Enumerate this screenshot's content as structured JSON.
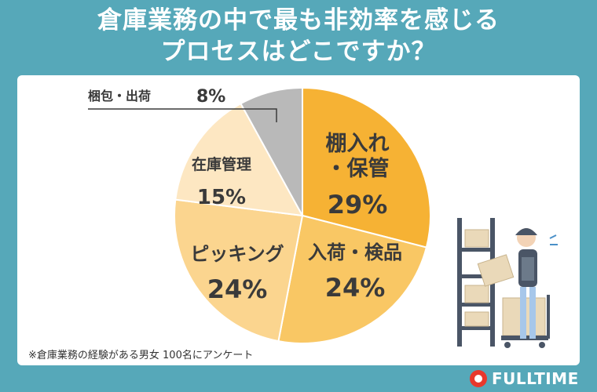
{
  "title_line1": "倉庫業務の中で最も非効率を感じる",
  "title_line2": "プロセスはどこですか？",
  "footnote": "※倉庫業務の経験がある男女 100名にアンケート",
  "logo": "FULLTIME",
  "chart_data": {
    "type": "pie",
    "slices": [
      {
        "label": "棚入れ・保管",
        "value": 29,
        "color": "#f6b234"
      },
      {
        "label": "入荷・検品",
        "value": 24,
        "color": "#f9c764"
      },
      {
        "label": "ピッキング",
        "value": 24,
        "color": "#fbd58f"
      },
      {
        "label": "在庫管理",
        "value": 15,
        "color": "#fde7c2"
      },
      {
        "label": "梱包・出荷",
        "value": 8,
        "color": "#b9b9b9"
      }
    ],
    "unit": "%"
  }
}
